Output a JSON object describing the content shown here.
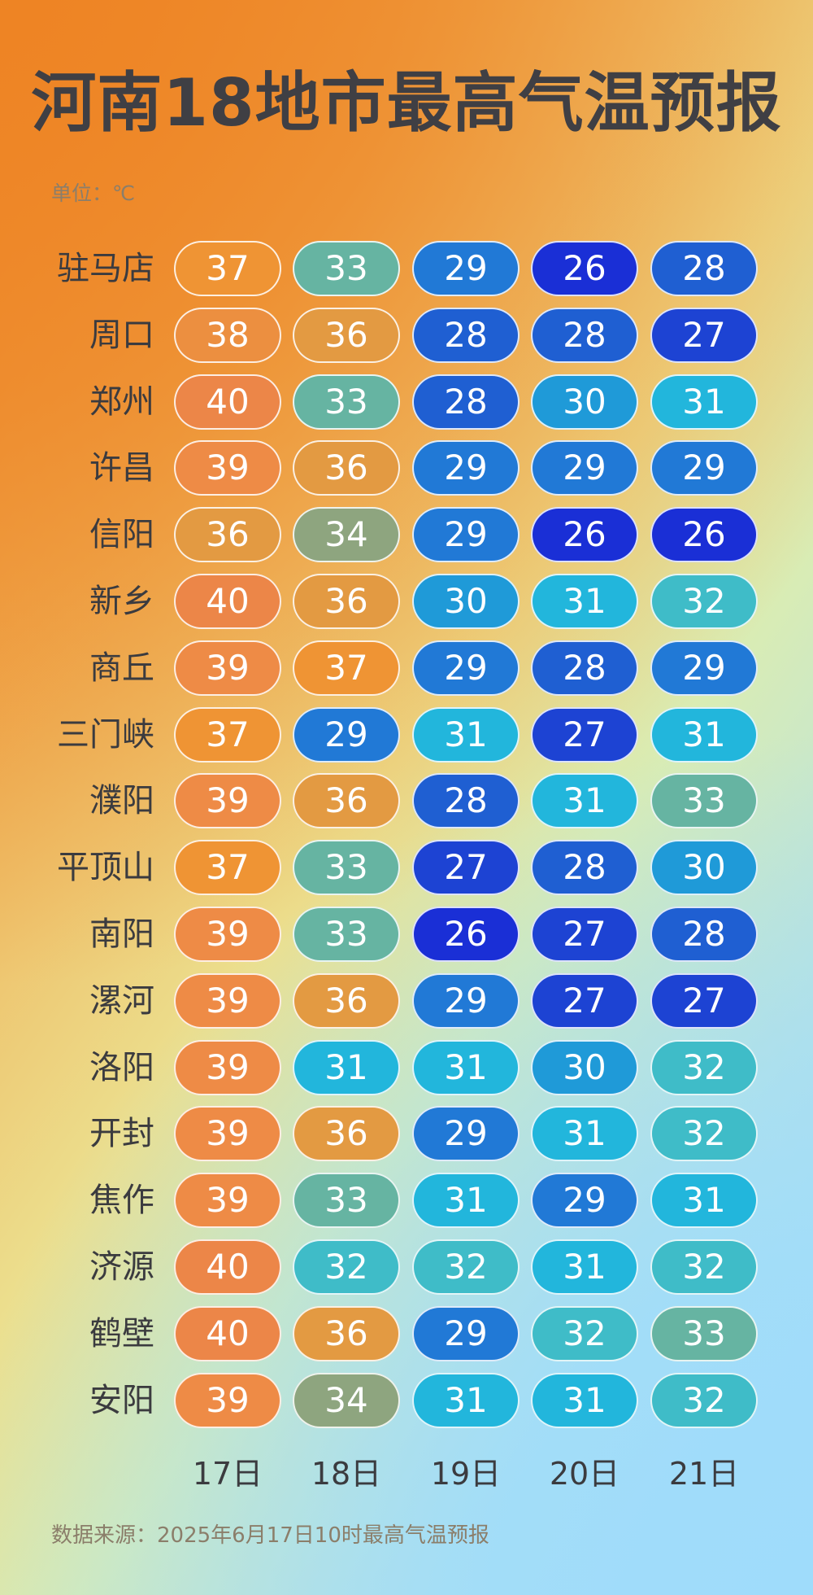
{
  "title": "河南18地市最高气温预报",
  "unit_label": "单位：℃",
  "source_label": "数据来源：2025年6月17日10时最高气温预报",
  "chart_data": {
    "type": "table",
    "title": "河南18地市最高气温预报",
    "unit": "℃",
    "columns": [
      "17日",
      "18日",
      "19日",
      "20日",
      "21日"
    ],
    "rows": [
      {
        "city": "驻马店",
        "values": [
          37,
          33,
          29,
          26,
          28
        ]
      },
      {
        "city": "周口",
        "values": [
          38,
          36,
          28,
          28,
          27
        ]
      },
      {
        "city": "郑州",
        "values": [
          40,
          33,
          28,
          30,
          31
        ]
      },
      {
        "city": "许昌",
        "values": [
          39,
          36,
          29,
          29,
          29
        ]
      },
      {
        "city": "信阳",
        "values": [
          36,
          34,
          29,
          26,
          26
        ]
      },
      {
        "city": "新乡",
        "values": [
          40,
          36,
          30,
          31,
          32
        ]
      },
      {
        "city": "商丘",
        "values": [
          39,
          37,
          29,
          28,
          29
        ]
      },
      {
        "city": "三门峡",
        "values": [
          37,
          29,
          31,
          27,
          31
        ]
      },
      {
        "city": "濮阳",
        "values": [
          39,
          36,
          28,
          31,
          33
        ]
      },
      {
        "city": "平顶山",
        "values": [
          37,
          33,
          27,
          28,
          30
        ]
      },
      {
        "city": "南阳",
        "values": [
          39,
          33,
          26,
          27,
          28
        ]
      },
      {
        "city": "漯河",
        "values": [
          39,
          36,
          29,
          27,
          27
        ]
      },
      {
        "city": "洛阳",
        "values": [
          39,
          31,
          31,
          30,
          32
        ]
      },
      {
        "city": "开封",
        "values": [
          39,
          36,
          29,
          31,
          32
        ]
      },
      {
        "city": "焦作",
        "values": [
          39,
          33,
          31,
          29,
          31
        ]
      },
      {
        "city": "济源",
        "values": [
          40,
          32,
          32,
          31,
          32
        ]
      },
      {
        "city": "鹤壁",
        "values": [
          40,
          36,
          29,
          32,
          33
        ]
      },
      {
        "city": "安阳",
        "values": [
          39,
          34,
          31,
          31,
          32
        ]
      }
    ],
    "color_scale": {
      "26": "#1a2fd6",
      "27": "#1d43d3",
      "28": "#1f5fd2",
      "29": "#2179d6",
      "30": "#1f9ad8",
      "31": "#22b6dc",
      "32": "#3fbcc8",
      "33": "#66b4a2",
      "34": "#8ea57f",
      "36": "#e39a42",
      "37": "#ef9434",
      "38": "#ec8f40",
      "39": "#ee8b46",
      "40": "#ec8648"
    }
  }
}
